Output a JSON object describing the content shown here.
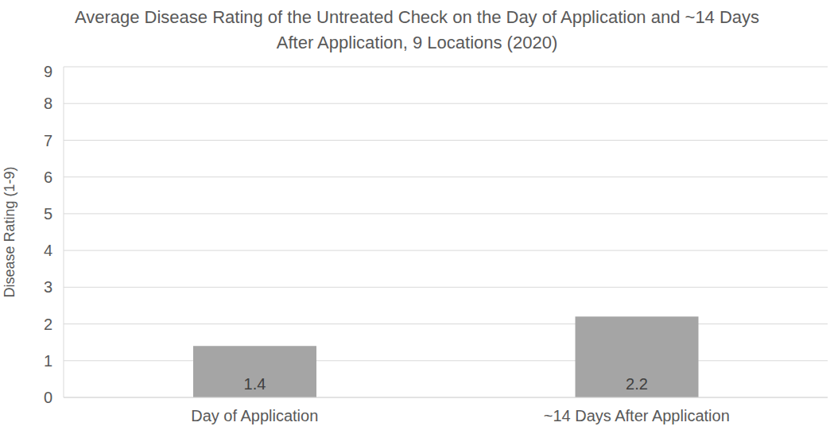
{
  "chart_data": {
    "type": "bar",
    "title": "Average Disease Rating of the Untreated Check on the Day of Application and ~14 Days After Application, 9 Locations (2020)",
    "y_label": "Disease Rating (1-9)",
    "categories": [
      "Day of Application",
      "~14 Days After Application"
    ],
    "values": [
      1.4,
      2.2
    ],
    "color": "#a5a5a5",
    "ylim": [
      0,
      9
    ],
    "yticks": [
      0,
      1,
      2,
      3,
      4,
      5,
      6,
      7,
      8,
      9
    ],
    "grid": true,
    "data_labels": true
  }
}
